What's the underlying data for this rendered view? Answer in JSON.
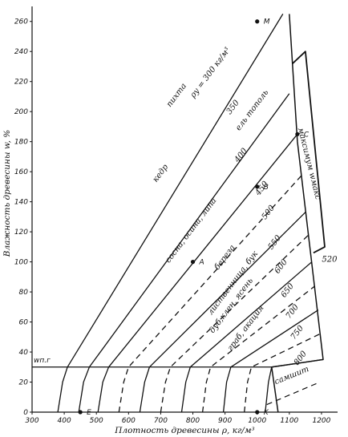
{
  "chart_data": {
    "type": "line",
    "xlabel": "Плотность древесины ρ, кг/м³",
    "ylabel": "Влажность древесины w, %",
    "xlim": [
      300,
      1250
    ],
    "ylim": [
      0,
      270
    ],
    "x_ticks": [
      "300",
      "400",
      "500",
      "600",
      "700",
      "800",
      "900",
      "1000",
      "1100",
      "1200"
    ],
    "y_ticks": [
      "0",
      "20",
      "40",
      "60",
      "80",
      "100",
      "120",
      "140",
      "160",
      "180",
      "200",
      "220",
      "240",
      "260"
    ],
    "grid": false,
    "fsp_label": "wп.г",
    "fsp_level": 30,
    "series": [
      {
        "name": "пихта ρу = 300 кг/м³",
        "label_value": "300",
        "style": "solid",
        "points": [
          [
            380,
            0
          ],
          [
            395,
            20
          ],
          [
            410,
            30
          ],
          [
            1080,
            265
          ]
        ]
      },
      {
        "name": "кедр ель тополь 350",
        "label_value": "350",
        "style": "solid",
        "points": [
          [
            445,
            0
          ],
          [
            460,
            20
          ],
          [
            478,
            30
          ],
          [
            1100,
            212
          ]
        ]
      },
      {
        "name": "сосна, осина, липа 400",
        "label_value": "400",
        "style": "solid",
        "points": [
          [
            505,
            0
          ],
          [
            520,
            20
          ],
          [
            538,
            30
          ],
          [
            1125,
            185
          ]
        ]
      },
      {
        "name": "450",
        "label_value": "450",
        "style": "dashed",
        "points": [
          [
            570,
            0
          ],
          [
            585,
            20
          ],
          [
            600,
            30
          ],
          [
            1140,
            158
          ]
        ]
      },
      {
        "name": "500",
        "label_value": "500",
        "style": "solid",
        "points": [
          [
            635,
            0
          ],
          [
            650,
            20
          ],
          [
            665,
            30
          ],
          [
            1150,
            133
          ]
        ]
      },
      {
        "name": "береза 550",
        "label_value": "550",
        "style": "dashed",
        "points": [
          [
            700,
            0
          ],
          [
            715,
            20
          ],
          [
            730,
            30
          ],
          [
            1160,
            118
          ]
        ]
      },
      {
        "name": "лиственница, бук 600",
        "label_value": "600",
        "style": "solid",
        "points": [
          [
            765,
            0
          ],
          [
            778,
            20
          ],
          [
            792,
            30
          ],
          [
            1170,
            100
          ]
        ]
      },
      {
        "name": "дуб, клен, ясень 650",
        "label_value": "650",
        "style": "dashed",
        "points": [
          [
            830,
            0
          ],
          [
            842,
            20
          ],
          [
            855,
            30
          ],
          [
            1180,
            84
          ]
        ]
      },
      {
        "name": "граб, акация 700",
        "label_value": "700",
        "style": "solid",
        "points": [
          [
            895,
            0
          ],
          [
            905,
            20
          ],
          [
            918,
            30
          ],
          [
            1190,
            68
          ]
        ]
      },
      {
        "name": "750",
        "label_value": "750",
        "style": "dashed",
        "points": [
          [
            960,
            0
          ],
          [
            970,
            20
          ],
          [
            982,
            30
          ],
          [
            1195,
            52
          ]
        ]
      },
      {
        "name": "самшит 800",
        "label_value": "800",
        "style": "solid",
        "points": [
          [
            1025,
            0
          ],
          [
            1035,
            20
          ],
          [
            1045,
            30
          ],
          [
            1205,
            35
          ]
        ]
      }
    ],
    "boundary_maximum": {
      "name": "максимум wмакс",
      "style": "solid",
      "points": [
        [
          1065,
          0
        ],
        [
          1045,
          30
        ],
        [
          1205,
          35
        ],
        [
          1125,
          180
        ],
        [
          1100,
          265
        ]
      ]
    },
    "boundary_dashed": {
      "style": "dashed",
      "points": [
        [
          1030,
          5
        ],
        [
          1195,
          20
        ]
      ]
    },
    "boundary_520": {
      "label": "520",
      "style": "solid",
      "points": [
        [
          1110,
          232
        ],
        [
          1150,
          240
        ],
        [
          1210,
          110
        ],
        [
          1175,
          106
        ]
      ]
    },
    "points": [
      {
        "label": "M",
        "x": 1000,
        "y": 260
      },
      {
        "label": "C",
        "x": 1125,
        "y": 185
      },
      {
        "label": "B",
        "x": 1000,
        "y": 150
      },
      {
        "label": "A",
        "x": 800,
        "y": 100
      },
      {
        "label": "E",
        "x": 450,
        "y": 0
      },
      {
        "label": "K",
        "x": 1000,
        "y": 0
      }
    ],
    "annotations": [
      {
        "text": "пихта",
        "x": 755,
        "y": 210,
        "rotate": -53
      },
      {
        "text": "ρу = 300 кг/м³",
        "x": 860,
        "y": 225,
        "rotate": -53
      },
      {
        "text": "350",
        "x": 930,
        "y": 202,
        "rotate": -53
      },
      {
        "text": "ель тополь",
        "x": 990,
        "y": 200,
        "rotate": -53
      },
      {
        "text": "кедр",
        "x": 705,
        "y": 158,
        "rotate": -53
      },
      {
        "text": "400",
        "x": 955,
        "y": 170,
        "rotate": -53
      },
      {
        "text": "сосна, осина, липа",
        "x": 800,
        "y": 120,
        "rotate": -53
      },
      {
        "text": "450",
        "x": 1020,
        "y": 148,
        "rotate": -53
      },
      {
        "text": "500",
        "x": 1040,
        "y": 132,
        "rotate": -53
      },
      {
        "text": "береза",
        "x": 905,
        "y": 102,
        "rotate": -53
      },
      {
        "text": "550",
        "x": 1060,
        "y": 112,
        "rotate": -53
      },
      {
        "text": "лиственница, бук",
        "x": 930,
        "y": 85,
        "rotate": -53
      },
      {
        "text": "600",
        "x": 1080,
        "y": 96,
        "rotate": -53
      },
      {
        "text": "дуб,клен, ясень",
        "x": 925,
        "y": 70,
        "rotate": -53
      },
      {
        "text": "650",
        "x": 1100,
        "y": 80,
        "rotate": -53
      },
      {
        "text": "граб, акация",
        "x": 970,
        "y": 55,
        "rotate": -53
      },
      {
        "text": "700",
        "x": 1115,
        "y": 66,
        "rotate": -53
      },
      {
        "text": "750",
        "x": 1130,
        "y": 52,
        "rotate": -53
      },
      {
        "text": "800",
        "x": 1140,
        "y": 35,
        "rotate": -53
      },
      {
        "text": "самшит",
        "x": 1110,
        "y": 23,
        "rotate": -22
      },
      {
        "text": "максимум wмакс",
        "x": 1155,
        "y": 165,
        "rotate": 76
      },
      {
        "text": "520",
        "x": 1225,
        "y": 100,
        "rotate": 0
      }
    ]
  }
}
